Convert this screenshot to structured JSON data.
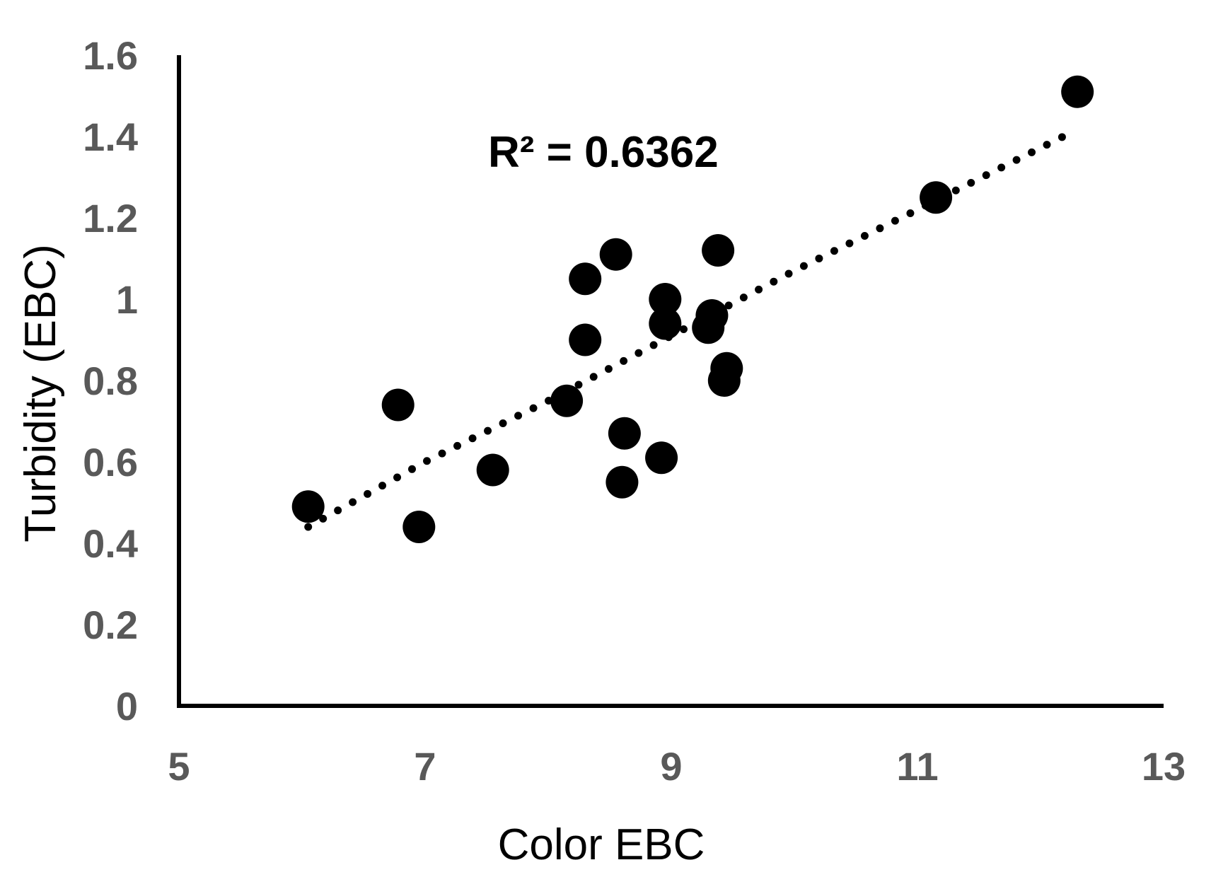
{
  "chart_data": {
    "type": "scatter",
    "xlabel": "Color EBC",
    "ylabel": "Turbidity (EBC)",
    "xlim": [
      5,
      13
    ],
    "ylim": [
      0,
      1.6
    ],
    "xticks": [
      "5",
      "7",
      "9",
      "11",
      "13"
    ],
    "yticks": [
      "0",
      "0.2",
      "0.4",
      "0.6",
      "0.8",
      "1",
      "1.2",
      "1.4",
      "1.6"
    ],
    "annotation": "R² = 0.6362",
    "grid": false,
    "legend": "none",
    "colors": {
      "points": "#000000",
      "axis": "#000000",
      "ticks": "#595959"
    },
    "points": [
      {
        "x": 6.05,
        "y": 0.49
      },
      {
        "x": 6.78,
        "y": 0.74
      },
      {
        "x": 6.95,
        "y": 0.44
      },
      {
        "x": 7.55,
        "y": 0.58
      },
      {
        "x": 8.15,
        "y": 0.75
      },
      {
        "x": 8.3,
        "y": 0.9
      },
      {
        "x": 8.3,
        "y": 1.05
      },
      {
        "x": 8.55,
        "y": 1.11
      },
      {
        "x": 8.6,
        "y": 0.55
      },
      {
        "x": 8.62,
        "y": 0.67
      },
      {
        "x": 8.92,
        "y": 0.61
      },
      {
        "x": 8.95,
        "y": 0.94
      },
      {
        "x": 8.95,
        "y": 1.0
      },
      {
        "x": 9.3,
        "y": 0.93
      },
      {
        "x": 9.33,
        "y": 0.96
      },
      {
        "x": 9.38,
        "y": 1.12
      },
      {
        "x": 9.43,
        "y": 0.8
      },
      {
        "x": 9.45,
        "y": 0.83
      },
      {
        "x": 11.15,
        "y": 1.25
      },
      {
        "x": 12.3,
        "y": 1.51
      }
    ],
    "trendline": {
      "style": "dotted",
      "points": [
        {
          "x": 6.05,
          "y": 0.44
        },
        {
          "x": 7.0,
          "y": 0.6
        },
        {
          "x": 8.0,
          "y": 0.75
        },
        {
          "x": 9.0,
          "y": 0.91
        },
        {
          "x": 10.0,
          "y": 1.07
        },
        {
          "x": 11.0,
          "y": 1.22
        },
        {
          "x": 12.25,
          "y": 1.41
        }
      ]
    }
  }
}
